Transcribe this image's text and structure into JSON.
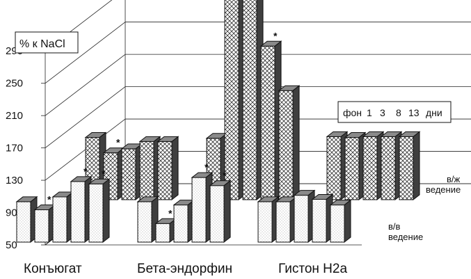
{
  "chart_data": {
    "type": "bar",
    "unit_label": "% к NaCl",
    "y_ticks": [
      50,
      90,
      130,
      170,
      210,
      250,
      290
    ],
    "ylim": [
      50,
      310
    ],
    "categories": [
      "Конъюгат",
      "Бета-эндорфин",
      "Гистон H2a"
    ],
    "days_legend": {
      "prefix": "фон",
      "items": [
        "1",
        "3",
        "8",
        "13"
      ],
      "suffix": "дни"
    },
    "series": [
      {
        "name": "в/в\nведение",
        "values": [
          [
            100,
            90,
            106,
            125,
            122
          ],
          [
            100,
            73,
            96,
            130,
            120
          ],
          [
            100,
            100,
            108,
            103,
            96
          ]
        ],
        "significant": [
          [
            false,
            true,
            false,
            true,
            true
          ],
          [
            false,
            true,
            false,
            true,
            true
          ],
          [
            false,
            false,
            false,
            false,
            false
          ]
        ]
      },
      {
        "name": "в/ж\nведение",
        "values": [
          [
            127,
            108,
            113,
            122,
            122
          ],
          [
            126,
            330,
            330,
            240,
            185
          ],
          [
            128,
            127,
            128,
            128,
            128
          ]
        ],
        "significant": [
          [
            false,
            true,
            false,
            false,
            false
          ],
          [
            false,
            true,
            true,
            true,
            false
          ],
          [
            false,
            false,
            false,
            false,
            false
          ]
        ]
      }
    ]
  }
}
